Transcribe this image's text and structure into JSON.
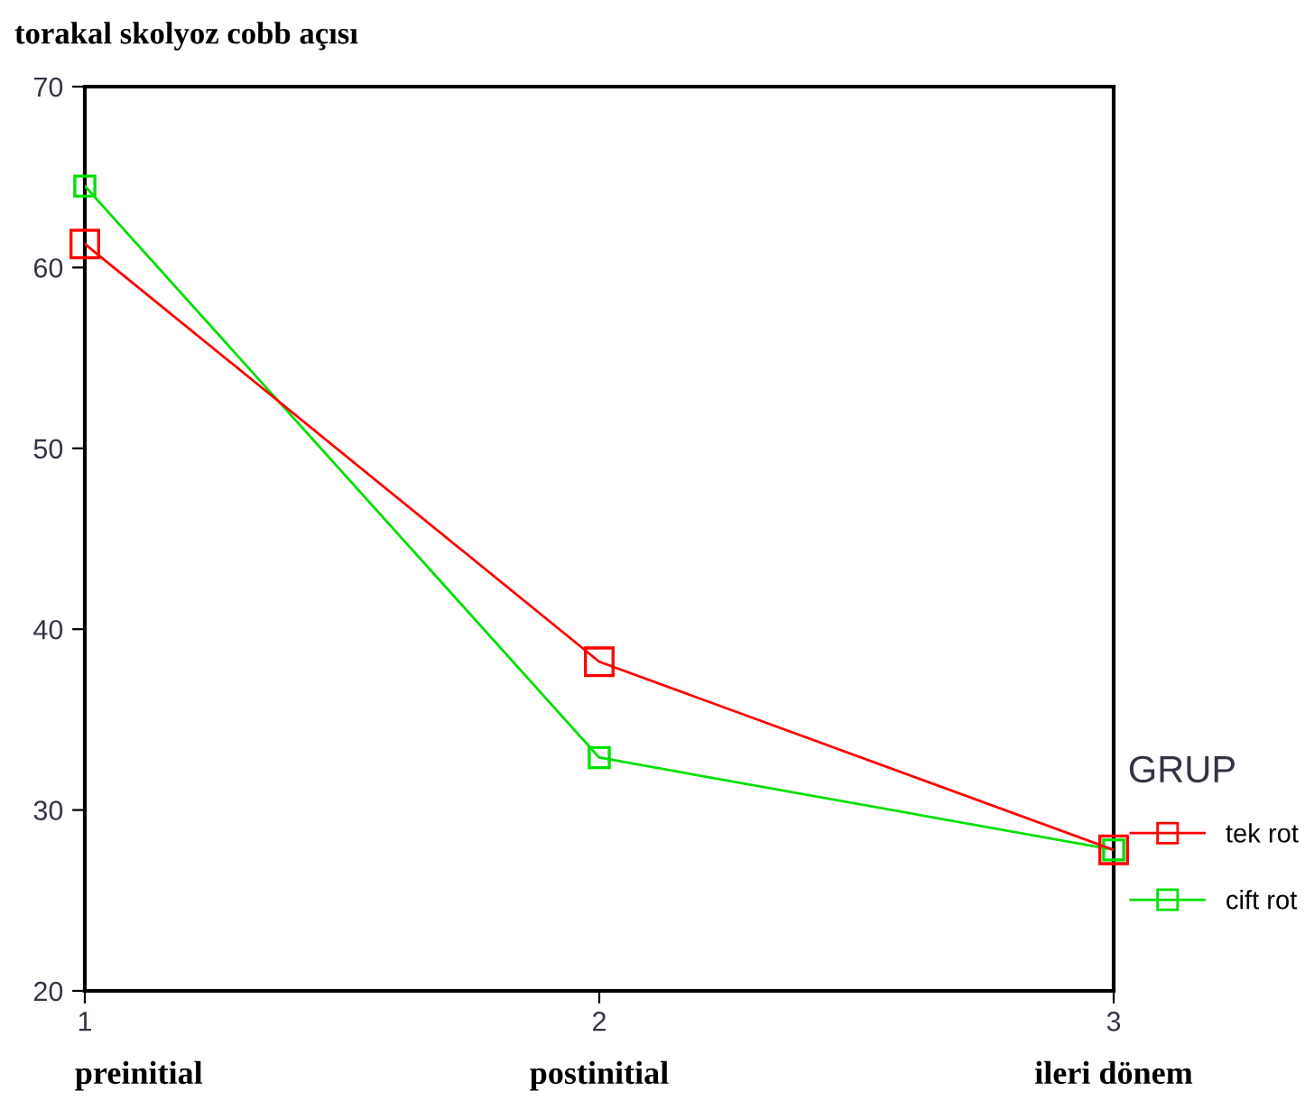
{
  "chart_data": {
    "type": "line",
    "ylabel": "torakal skolyoz cobb açısı",
    "categories": [
      "1\npreinitial",
      "2\npostinitial",
      "3\nileri dönem"
    ],
    "ylim": [
      20,
      70
    ],
    "yticks": [
      20,
      30,
      40,
      50,
      60,
      70
    ],
    "series": [
      {
        "name": "tek rot",
        "color": "#ff0000",
        "values": [
          61.3,
          38.2,
          27.8
        ]
      },
      {
        "name": "cift rot",
        "color": "#00e000",
        "values": [
          64.5,
          32.9,
          27.8
        ]
      }
    ],
    "legend_title": "GRUP",
    "legend": "right",
    "marker": "square",
    "line_style": "solid",
    "grid": false
  }
}
